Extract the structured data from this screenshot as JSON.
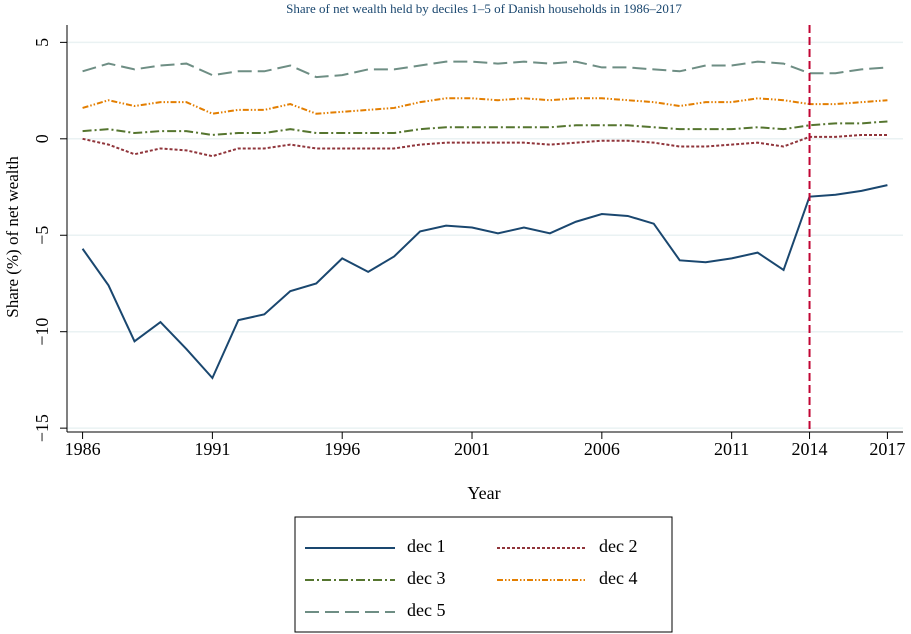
{
  "chart_data": {
    "type": "line",
    "title": "Share of net wealth held by deciles 1–5 of Danish households in 1986–2017",
    "xlabel": "Year",
    "ylabel": "Share (%) of net wealth",
    "x": [
      1986,
      1987,
      1988,
      1989,
      1990,
      1991,
      1992,
      1993,
      1994,
      1995,
      1996,
      1997,
      1998,
      1999,
      2000,
      2001,
      2002,
      2003,
      2004,
      2005,
      2006,
      2007,
      2008,
      2009,
      2010,
      2011,
      2012,
      2013,
      2014,
      2015,
      2016,
      2017
    ],
    "series": [
      {
        "name": "dec 1",
        "color": "#1a476f",
        "values": [
          -5.7,
          -7.6,
          -10.5,
          -9.5,
          -10.9,
          -12.4,
          -9.4,
          -9.1,
          -7.9,
          -7.5,
          -6.2,
          -6.9,
          -6.1,
          -4.8,
          -4.5,
          -4.6,
          -4.9,
          -4.6,
          -4.9,
          -4.3,
          -3.9,
          -4.0,
          -4.4,
          -6.3,
          -6.4,
          -6.2,
          -5.9,
          -6.8,
          -3.0,
          -2.9,
          -2.7,
          -2.4
        ]
      },
      {
        "name": "dec 2",
        "color": "#90353b",
        "values": [
          0,
          -0.3,
          -0.8,
          -0.5,
          -0.6,
          -0.9,
          -0.5,
          -0.5,
          -0.3,
          -0.5,
          -0.5,
          -0.5,
          -0.5,
          -0.3,
          -0.2,
          -0.2,
          -0.2,
          -0.2,
          -0.3,
          -0.2,
          -0.1,
          -0.1,
          -0.2,
          -0.4,
          -0.4,
          -0.3,
          -0.2,
          -0.4,
          0.1,
          0.1,
          0.2,
          0.2
        ]
      },
      {
        "name": "dec 3",
        "color": "#55752f",
        "values": [
          0.4,
          0.5,
          0.3,
          0.4,
          0.4,
          0.2,
          0.3,
          0.3,
          0.5,
          0.3,
          0.3,
          0.3,
          0.3,
          0.5,
          0.6,
          0.6,
          0.6,
          0.6,
          0.6,
          0.7,
          0.7,
          0.7,
          0.6,
          0.5,
          0.5,
          0.5,
          0.6,
          0.5,
          0.7,
          0.8,
          0.8,
          0.9
        ]
      },
      {
        "name": "dec 4",
        "color": "#e37e00",
        "values": [
          1.6,
          2.0,
          1.7,
          1.9,
          1.9,
          1.3,
          1.5,
          1.5,
          1.8,
          1.3,
          1.4,
          1.5,
          1.6,
          1.9,
          2.1,
          2.1,
          2.0,
          2.1,
          2.0,
          2.1,
          2.1,
          2.0,
          1.9,
          1.7,
          1.9,
          1.9,
          2.1,
          2.0,
          1.8,
          1.8,
          1.9,
          2.0
        ]
      },
      {
        "name": "dec 5",
        "color": "#6e8e84",
        "values": [
          3.5,
          3.9,
          3.6,
          3.8,
          3.9,
          3.3,
          3.5,
          3.5,
          3.8,
          3.2,
          3.3,
          3.6,
          3.6,
          3.8,
          4.0,
          4.0,
          3.9,
          4.0,
          3.9,
          4.0,
          3.7,
          3.7,
          3.6,
          3.5,
          3.8,
          3.8,
          4.0,
          3.9,
          3.4,
          3.4,
          3.6,
          3.7
        ]
      }
    ],
    "xlim": [
      1985.4,
      2017.6
    ],
    "ylim": [
      -15.2,
      5.9
    ],
    "xticks": [
      1986,
      1991,
      1996,
      2001,
      2006,
      2011,
      2014,
      2017
    ],
    "yticks": [
      5,
      0,
      {
        "value": -5,
        "label": "−5"
      },
      {
        "value": -10,
        "label": "−10"
      },
      {
        "value": -15,
        "label": "−15"
      }
    ],
    "grid": true,
    "vline": {
      "x": 2014,
      "color": "#c10534"
    },
    "legend": "bottom"
  }
}
